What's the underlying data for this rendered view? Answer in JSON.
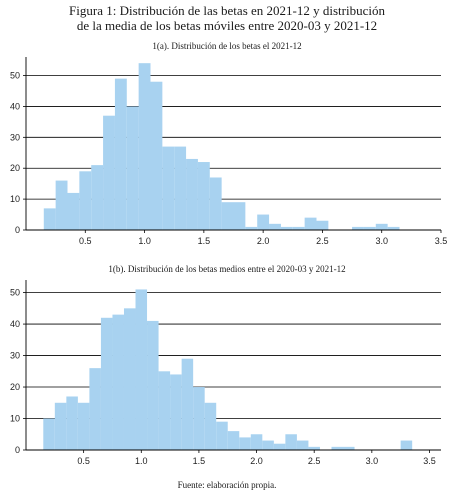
{
  "figure": {
    "title_line1": "Figura 1: Distribución de las betas en 2021-12 y distribución",
    "title_line2": "de la media de los betas móviles entre 2020-03 y 2021-12",
    "source": "Fuente: elaboración propia."
  },
  "colors": {
    "bar": "#a8d2f0",
    "grid": "#000000",
    "axis": "#000000"
  },
  "chart_data": [
    {
      "type": "bar",
      "title": "1(a). Distribución de los betas el 2021-12",
      "xlabel": "",
      "ylabel": "",
      "bin_width": 0.1,
      "x_start": 0.15,
      "values": [
        7,
        16,
        12,
        19,
        21,
        37,
        49,
        40,
        54,
        48,
        27,
        27,
        23,
        22,
        17,
        9,
        9,
        1,
        5,
        2,
        1,
        1,
        4,
        3,
        0,
        0,
        1,
        1,
        2,
        1
      ],
      "xlim": [
        0.0,
        3.5
      ],
      "ylim": [
        0,
        56
      ],
      "xticks": [
        0.5,
        1.0,
        1.5,
        2.0,
        2.5,
        3.0,
        3.5
      ],
      "xtick_labels": [
        "0.5",
        "1.0",
        "1.5",
        "2.0",
        "2.5",
        "3.0",
        "3.5"
      ],
      "yticks": [
        0,
        10,
        20,
        30,
        40,
        50
      ],
      "ytick_labels": [
        "0",
        "10",
        "20",
        "30",
        "40",
        "50"
      ],
      "grid": "horizontal"
    },
    {
      "type": "bar",
      "title": "1(b). Distribución de los betas medios entre el 2020-03 y 2021-12",
      "xlabel": "",
      "ylabel": "",
      "bin_width": 0.1,
      "x_start": 0.15,
      "values": [
        10,
        15,
        17,
        15,
        26,
        42,
        43,
        45,
        51,
        41,
        25,
        24,
        29,
        20,
        15,
        9,
        6,
        4,
        5,
        3,
        2,
        5,
        3,
        1,
        0,
        1,
        1,
        0,
        0,
        0,
        0,
        3
      ],
      "xlim": [
        0.0,
        3.6
      ],
      "ylim": [
        0,
        54
      ],
      "xticks": [
        0.5,
        1.0,
        1.5,
        2.0,
        2.5,
        3.0,
        3.5
      ],
      "xtick_labels": [
        "0.5",
        "1.0",
        "1.5",
        "2.0",
        "2.5",
        "3.0",
        "3.5"
      ],
      "yticks": [
        0,
        10,
        20,
        30,
        40,
        50
      ],
      "ytick_labels": [
        "0",
        "10",
        "20",
        "30",
        "40",
        "50"
      ],
      "grid": "horizontal"
    }
  ]
}
